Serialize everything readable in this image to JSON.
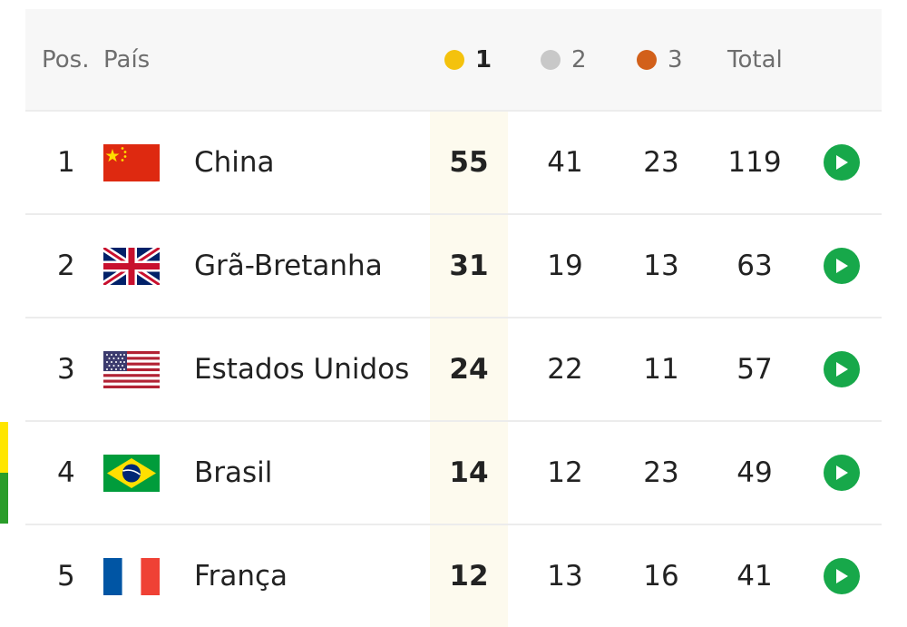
{
  "header": {
    "pos_label": "Pos.",
    "country_label": "País",
    "gold_label": "1",
    "silver_label": "2",
    "bronze_label": "3",
    "total_label": "Total"
  },
  "colors": {
    "gold": "#f4c20d",
    "silver": "#c8c8c8",
    "bronze": "#d2601a",
    "play": "#17a84a",
    "brazil_yellow": "#ffe600",
    "brazil_green": "#2a9d2a"
  },
  "rows": [
    {
      "pos": "1",
      "country": "China",
      "flag": "flag-china-icon",
      "gold": "55",
      "silver": "41",
      "bronze": "23",
      "total": "119"
    },
    {
      "pos": "2",
      "country": "Grã-Bretanha",
      "flag": "flag-uk-icon",
      "gold": "31",
      "silver": "19",
      "bronze": "13",
      "total": "63"
    },
    {
      "pos": "3",
      "country": "Estados Unidos",
      "flag": "flag-usa-icon",
      "gold": "24",
      "silver": "22",
      "bronze": "11",
      "total": "57"
    },
    {
      "pos": "4",
      "country": "Brasil",
      "flag": "flag-brazil-icon",
      "gold": "14",
      "silver": "12",
      "bronze": "23",
      "total": "49"
    },
    {
      "pos": "5",
      "country": "França",
      "flag": "flag-france-icon",
      "gold": "12",
      "silver": "13",
      "bronze": "16",
      "total": "41"
    }
  ]
}
